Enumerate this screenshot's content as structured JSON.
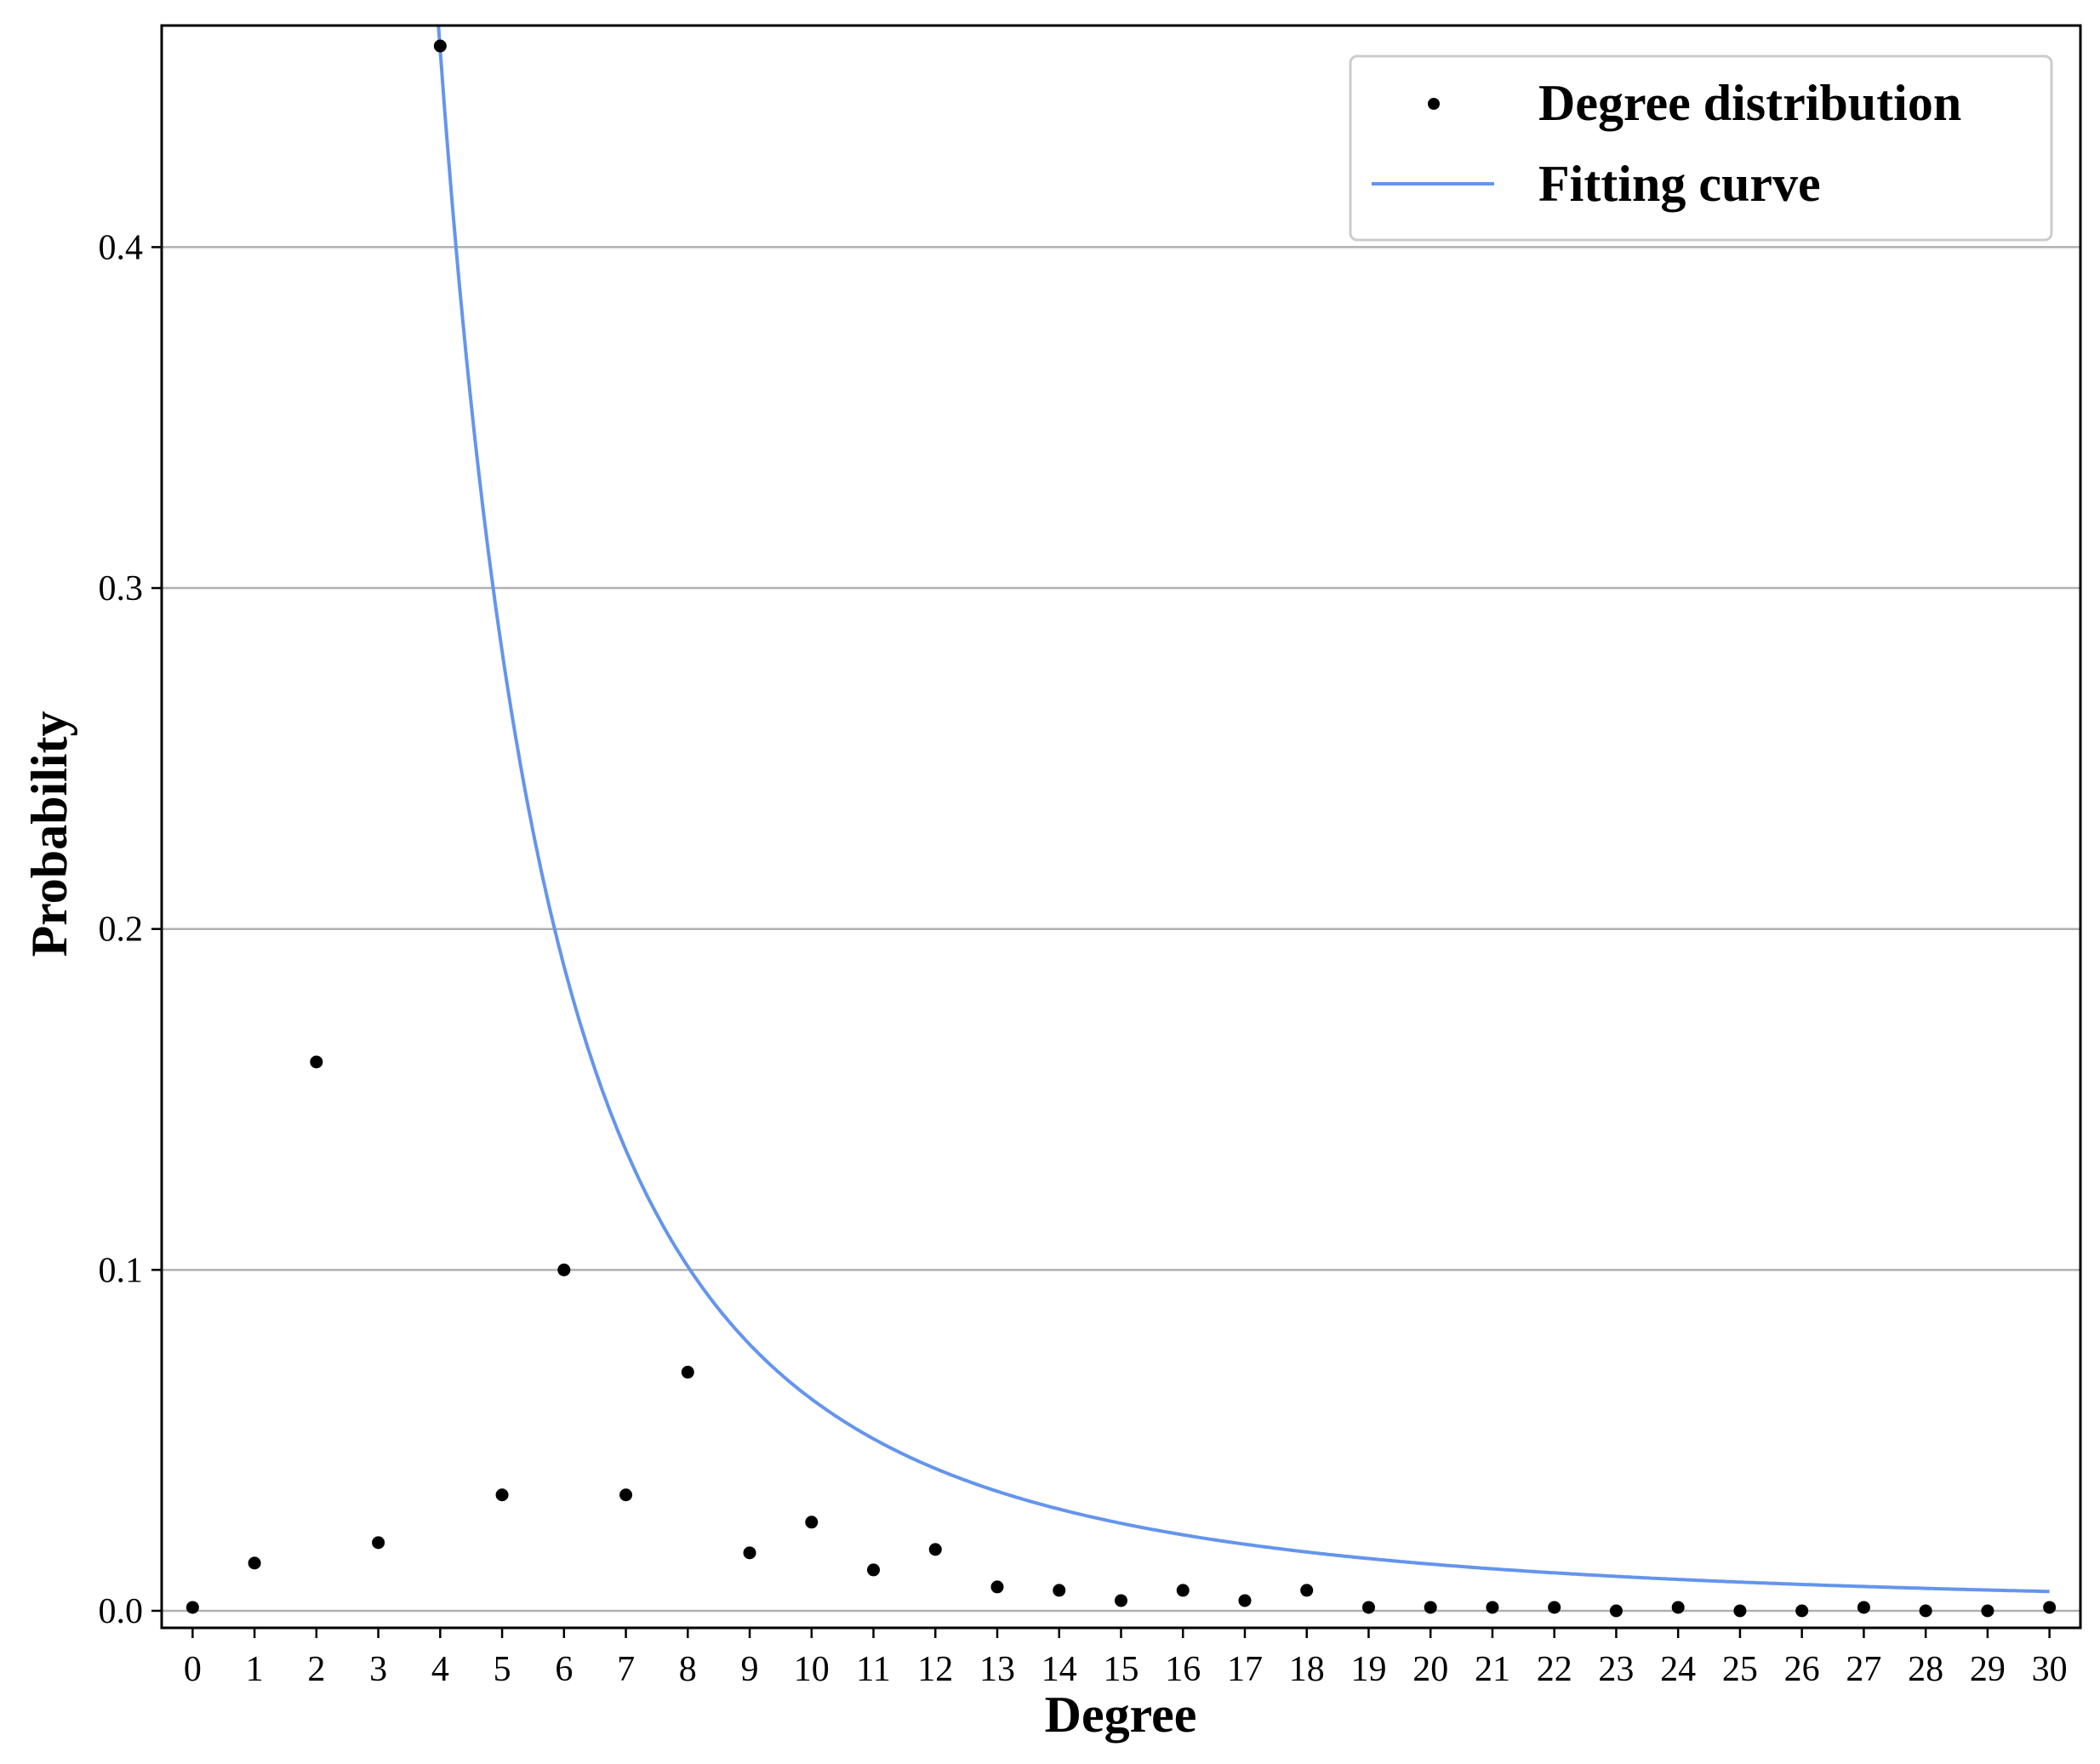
{
  "chart_data": {
    "type": "scatter",
    "xlabel": "Degree",
    "ylabel": "Probability",
    "xlim": [
      -0.5,
      30.5
    ],
    "ylim": [
      -0.005,
      0.465
    ],
    "xticks": [
      "0",
      "1",
      "2",
      "3",
      "4",
      "5",
      "6",
      "7",
      "8",
      "9",
      "10",
      "11",
      "12",
      "13",
      "14",
      "15",
      "16",
      "17",
      "18",
      "19",
      "20",
      "21",
      "22",
      "23",
      "24",
      "25",
      "26",
      "27",
      "28",
      "29",
      "30"
    ],
    "yticks": [
      {
        "value": 0.0,
        "label": "0.0"
      },
      {
        "value": 0.1,
        "label": "0.1"
      },
      {
        "value": 0.2,
        "label": "0.2"
      },
      {
        "value": 0.3,
        "label": "0.3"
      },
      {
        "value": 0.4,
        "label": "0.4"
      }
    ],
    "grid": "horizontal",
    "legend_position": "top-right",
    "series": [
      {
        "name": "Degree distribution",
        "kind": "scatter",
        "color": "#000000",
        "x": [
          0,
          1,
          2,
          3,
          4,
          5,
          6,
          7,
          8,
          9,
          10,
          11,
          12,
          13,
          14,
          15,
          16,
          17,
          18,
          19,
          20,
          21,
          22,
          23,
          24,
          25,
          26,
          27,
          28,
          29,
          30
        ],
        "y": [
          0.001,
          0.014,
          0.161,
          0.02,
          0.459,
          0.034,
          0.1,
          0.034,
          0.07,
          0.017,
          0.026,
          0.012,
          0.018,
          0.007,
          0.006,
          0.003,
          0.006,
          0.003,
          0.006,
          0.001,
          0.001,
          0.001,
          0.001,
          0.0,
          0.001,
          0.0,
          0.0,
          0.001,
          0.0,
          0.0,
          0.001
        ]
      },
      {
        "name": "Fitting curve",
        "kind": "line",
        "color": "#6495ED",
        "function": "power_law",
        "coefficient": 9.4,
        "exponent": -2.18,
        "x_range": [
          3.9,
          30
        ]
      }
    ]
  }
}
